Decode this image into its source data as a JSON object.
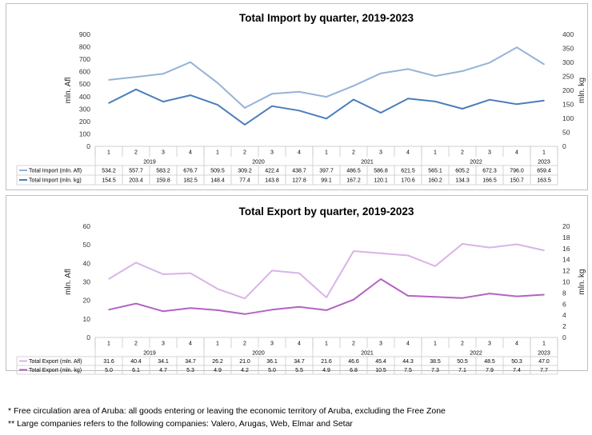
{
  "footnotes": [
    "* Free circulation area of Aruba: all goods entering or leaving the economic territory of Aruba, excluding the Free Zone",
    "** Large companies refers to the following companies: Valero, Arugas, Web, Elmar and Setar"
  ],
  "chart_data": [
    {
      "type": "line",
      "title": "Total Import by quarter, 2019-2023",
      "ylabel": "mln. Afl",
      "y2label": "mln. kg",
      "ylim": [
        0,
        900
      ],
      "yticks": [
        0,
        100,
        200,
        300,
        400,
        500,
        600,
        700,
        800,
        900
      ],
      "y2lim": [
        0,
        400
      ],
      "y2ticks": [
        0,
        50,
        100,
        150,
        200,
        250,
        300,
        350,
        400
      ],
      "quarters": [
        "1",
        "2",
        "3",
        "4",
        "1",
        "2",
        "3",
        "4",
        "1",
        "2",
        "3",
        "4",
        "1",
        "2",
        "3",
        "4",
        "1"
      ],
      "years": [
        {
          "label": "2019",
          "span": 4
        },
        {
          "label": "2020",
          "span": 4
        },
        {
          "label": "2021",
          "span": 4
        },
        {
          "label": "2022",
          "span": 4
        },
        {
          "label": "2023",
          "span": 1
        }
      ],
      "series": [
        {
          "name": "Total Import (mln. Afl)",
          "axis": "left",
          "color": "#95b3d7",
          "labels": [
            "534.2",
            "557.7",
            "583.2",
            "676.7",
            "509.5",
            "309.2",
            "422.4",
            "438.7",
            "397.7",
            "486.5",
            "586.8",
            "621.5",
            "565.1",
            "605.2",
            "672.3",
            "796.0",
            "659.4"
          ],
          "values": [
            534.2,
            557.7,
            583.2,
            676.7,
            509.5,
            309.2,
            422.4,
            438.7,
            397.7,
            486.5,
            586.8,
            621.5,
            565.1,
            605.2,
            672.3,
            796.0,
            659.4
          ]
        },
        {
          "name": "Total Import (mln. kg)",
          "axis": "right",
          "color": "#4a7ebb",
          "labels": [
            "154.5",
            "203.4",
            "159.8",
            "182.5",
            "148.4",
            "77.4",
            "143.8",
            "127.8",
            "99.1",
            "167.2",
            "120.1",
            "170.6",
            "160.2",
            "134.3",
            "166.5",
            "150.7",
            "163.5"
          ],
          "values": [
            154.5,
            203.4,
            159.8,
            182.5,
            148.4,
            77.4,
            143.8,
            127.8,
            99.1,
            167.2,
            120.1,
            170.6,
            160.2,
            134.3,
            166.5,
            150.7,
            163.5
          ]
        }
      ]
    },
    {
      "type": "line",
      "title": "Total Export by quarter, 2019-2023",
      "ylabel": "mln. Afl",
      "y2label": "mln. kg",
      "ylim": [
        0,
        60
      ],
      "yticks": [
        0,
        10,
        20,
        30,
        40,
        50,
        60
      ],
      "y2lim": [
        0,
        20
      ],
      "y2ticks": [
        0,
        2,
        4,
        6,
        8,
        10,
        12,
        14,
        16,
        18,
        20
      ],
      "quarters": [
        "1",
        "2",
        "3",
        "4",
        "1",
        "2",
        "3",
        "4",
        "1",
        "2",
        "3",
        "4",
        "1",
        "2",
        "3",
        "4",
        "1"
      ],
      "years": [
        {
          "label": "2019",
          "span": 4
        },
        {
          "label": "2020",
          "span": 4
        },
        {
          "label": "2021",
          "span": 4
        },
        {
          "label": "2022",
          "span": 4
        },
        {
          "label": "2023",
          "span": 1
        }
      ],
      "series": [
        {
          "name": "Total Export (mln. Afl)",
          "axis": "left",
          "color": "#d8b4e8",
          "labels": [
            "31.6",
            "40.4",
            "34.1",
            "34.7",
            "26.2",
            "21.0",
            "36.1",
            "34.7",
            "21.6",
            "46.6",
            "45.4",
            "44.3",
            "38.5",
            "50.5",
            "48.5",
            "50.3",
            "47.0"
          ],
          "values": [
            31.6,
            40.4,
            34.1,
            34.7,
            26.2,
            21.0,
            36.1,
            34.7,
            21.6,
            46.6,
            45.4,
            44.3,
            38.5,
            50.5,
            48.5,
            50.3,
            47.0
          ]
        },
        {
          "name": "Total Export (mln. kg)",
          "axis": "right",
          "color": "#b462c4",
          "labels": [
            "5.0",
            "6.1",
            "4.7",
            "5.3",
            "4.9",
            "4.2",
            "5.0",
            "5.5",
            "4.9",
            "6.8",
            "10.5",
            "7.5",
            "7.3",
            "7.1",
            "7.9",
            "7.4",
            "7.7"
          ],
          "values": [
            5.0,
            6.1,
            4.7,
            5.3,
            4.9,
            4.2,
            5.0,
            5.5,
            4.9,
            6.8,
            10.5,
            7.5,
            7.3,
            7.1,
            7.9,
            7.4,
            7.7
          ]
        }
      ]
    }
  ]
}
